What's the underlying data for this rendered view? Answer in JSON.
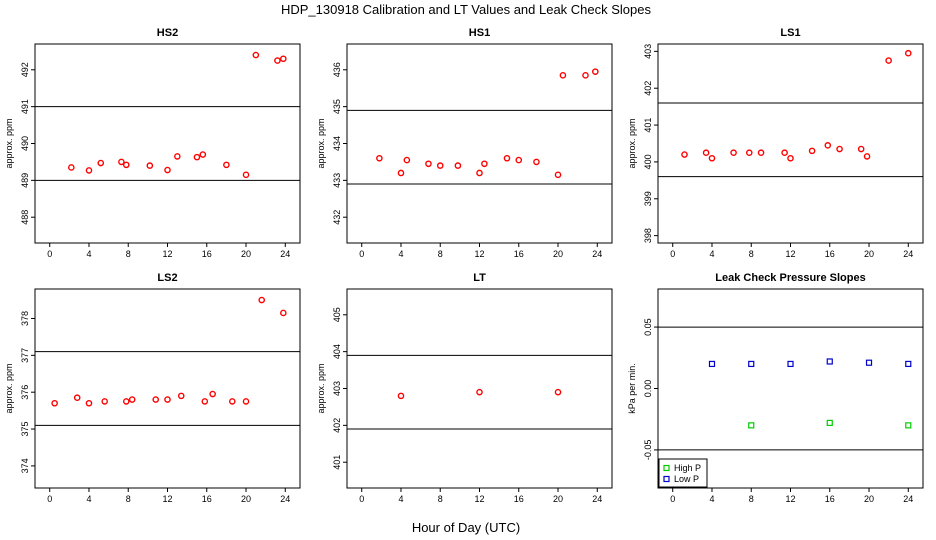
{
  "figure": {
    "title": "HDP_130918  Calibration and LT Values and Leak Check Slopes",
    "xlabel": "Hour of Day (UTC)"
  },
  "chart_data": [
    {
      "type": "scatter",
      "title": "HS2",
      "ylabel": "approx. ppm",
      "xlim": [
        -1.5,
        25.5
      ],
      "ylim": [
        487.3,
        492.7
      ],
      "xticks": [
        0,
        4,
        8,
        12,
        16,
        20,
        24
      ],
      "yticks": [
        488,
        489,
        490,
        491,
        492
      ],
      "hlines": [
        491,
        489
      ],
      "marker_color": "#ff0000",
      "series": [
        {
          "x": [
            2.2,
            4,
            5.2,
            7.3,
            7.8,
            10.2,
            12,
            13,
            15,
            15.6,
            18,
            20,
            21,
            23.2,
            23.8
          ],
          "y": [
            489.35,
            489.27,
            489.47,
            489.5,
            489.42,
            489.4,
            489.28,
            489.65,
            489.63,
            489.7,
            489.42,
            489.15,
            492.4,
            492.25,
            492.3
          ]
        }
      ]
    },
    {
      "type": "scatter",
      "title": "HS1",
      "ylabel": "approx. ppm",
      "xlim": [
        -1.5,
        25.5
      ],
      "ylim": [
        431.3,
        436.7
      ],
      "xticks": [
        0,
        4,
        8,
        12,
        16,
        20,
        24
      ],
      "yticks": [
        432,
        433,
        434,
        435,
        436
      ],
      "hlines": [
        434.9,
        432.9
      ],
      "marker_color": "#ff0000",
      "series": [
        {
          "x": [
            1.8,
            4,
            4.6,
            6.8,
            8,
            9.8,
            12,
            12.5,
            14.8,
            16,
            17.8,
            20,
            20.5,
            22.8,
            23.8
          ],
          "y": [
            433.6,
            433.2,
            433.55,
            433.45,
            433.4,
            433.4,
            433.2,
            433.45,
            433.6,
            433.55,
            433.5,
            433.15,
            435.85,
            435.85,
            435.95
          ]
        }
      ]
    },
    {
      "type": "scatter",
      "title": "LS1",
      "ylabel": "approx. ppm",
      "xlim": [
        -1.5,
        25.5
      ],
      "ylim": [
        397.8,
        403.2
      ],
      "xticks": [
        0,
        4,
        8,
        12,
        16,
        20,
        24
      ],
      "yticks": [
        398,
        399,
        400,
        401,
        402,
        403
      ],
      "hlines": [
        401.6,
        399.6
      ],
      "marker_color": "#ff0000",
      "series": [
        {
          "x": [
            1.2,
            3.4,
            4,
            6.2,
            7.8,
            9,
            11.4,
            12,
            14.2,
            15.8,
            17,
            19.2,
            19.8,
            22,
            24
          ],
          "y": [
            400.2,
            400.25,
            400.1,
            400.25,
            400.25,
            400.25,
            400.25,
            400.1,
            400.3,
            400.45,
            400.35,
            400.35,
            400.15,
            402.75,
            402.95
          ]
        }
      ]
    },
    {
      "type": "scatter",
      "title": "LS2",
      "ylabel": "approx. ppm",
      "xlim": [
        -1.5,
        25.5
      ],
      "ylim": [
        373.4,
        378.8
      ],
      "xticks": [
        0,
        4,
        8,
        12,
        16,
        20,
        24
      ],
      "yticks": [
        374,
        375,
        376,
        377,
        378
      ],
      "hlines": [
        377.1,
        375.1
      ],
      "marker_color": "#ff0000",
      "series": [
        {
          "x": [
            0.5,
            2.8,
            4,
            5.6,
            7.8,
            8.4,
            10.8,
            12,
            13.4,
            15.8,
            16.6,
            18.6,
            20,
            21.6,
            23.8
          ],
          "y": [
            375.7,
            375.85,
            375.7,
            375.75,
            375.75,
            375.8,
            375.8,
            375.8,
            375.9,
            375.75,
            375.95,
            375.75,
            375.75,
            378.5,
            378.15
          ]
        }
      ]
    },
    {
      "type": "scatter",
      "title": "LT",
      "ylabel": "approx. ppm",
      "xlim": [
        -1.5,
        25.5
      ],
      "ylim": [
        400.3,
        405.7
      ],
      "xticks": [
        0,
        4,
        8,
        12,
        16,
        20,
        24
      ],
      "yticks": [
        401,
        402,
        403,
        404,
        405
      ],
      "hlines": [
        403.9,
        401.9
      ],
      "marker_color": "#ff0000",
      "series": [
        {
          "x": [
            4,
            12,
            20
          ],
          "y": [
            402.8,
            402.9,
            402.9
          ]
        }
      ]
    },
    {
      "type": "scatter",
      "title": "Leak Check Pressure Slopes",
      "ylabel": "kPa per min.",
      "xlim": [
        -1.5,
        25.5
      ],
      "ylim": [
        -0.081,
        0.081
      ],
      "xticks": [
        0,
        4,
        8,
        12,
        16,
        20,
        24
      ],
      "yticks": [
        -0.05,
        0.0,
        0.05
      ],
      "ytick_labels": [
        "-0.05",
        "0.00",
        "0.05"
      ],
      "hlines": [
        0.05,
        -0.05
      ],
      "legend": "bottom-left",
      "series": [
        {
          "name": "High P",
          "color": "#00cc00",
          "x": [
            8,
            16,
            24
          ],
          "y": [
            -0.03,
            -0.028,
            -0.03
          ]
        },
        {
          "name": "Low P",
          "color": "#0000cc",
          "x": [
            4,
            8,
            12,
            16,
            20,
            24
          ],
          "y": [
            0.02,
            0.02,
            0.02,
            0.022,
            0.021,
            0.02
          ]
        }
      ]
    }
  ]
}
